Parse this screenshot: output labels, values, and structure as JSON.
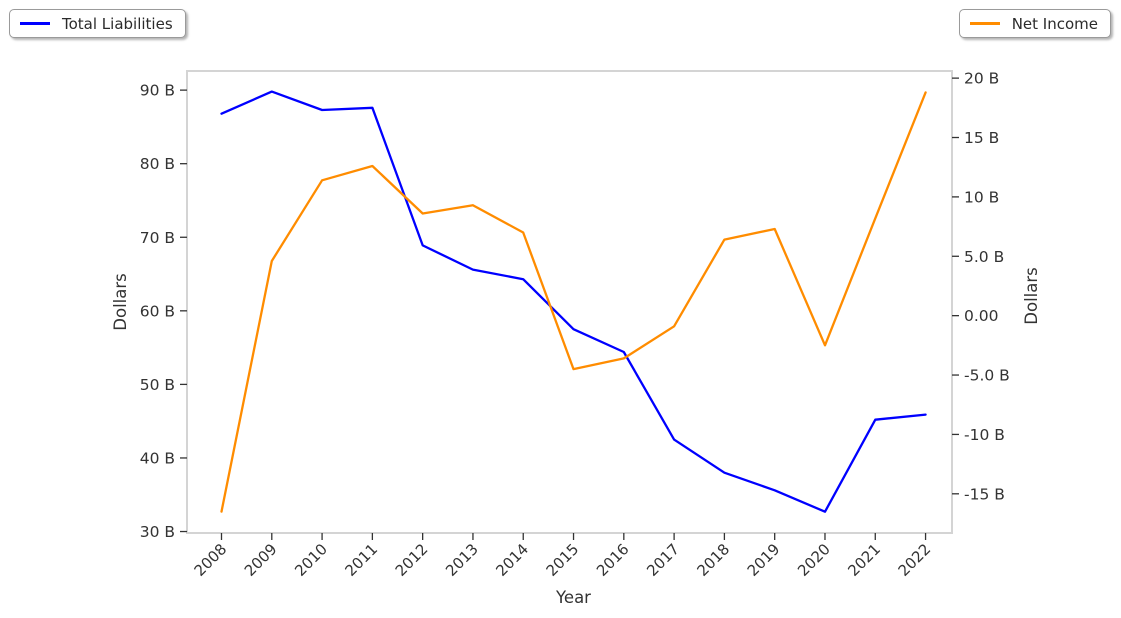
{
  "legends": {
    "left": {
      "label": "Total Liabilities",
      "color": "#0000ff"
    },
    "right": {
      "label": "Net Income",
      "color": "#ff8c00"
    }
  },
  "chart_data": {
    "type": "line",
    "title": "",
    "xlabel": "Year",
    "x_categories": [
      "2008",
      "2009",
      "2010",
      "2011",
      "2012",
      "2013",
      "2014",
      "2015",
      "2016",
      "2017",
      "2018",
      "2019",
      "2020",
      "2021",
      "2022"
    ],
    "series": [
      {
        "name": "Total Liabilities",
        "axis": "left",
        "color": "#0000ff",
        "unit": "billions of dollars",
        "values": [
          86.8,
          89.8,
          87.3,
          87.6,
          68.9,
          65.6,
          64.3,
          57.5,
          54.4,
          42.5,
          38.0,
          35.6,
          32.7,
          45.2,
          45.9
        ]
      },
      {
        "name": "Net Income",
        "axis": "right",
        "color": "#ff8c00",
        "unit": "billions of dollars",
        "values": [
          -16.5,
          4.6,
          11.4,
          12.6,
          8.6,
          9.3,
          7.0,
          -4.5,
          -3.6,
          -0.9,
          6.4,
          7.3,
          -2.5,
          8.2,
          18.8
        ]
      }
    ],
    "left_axis": {
      "title": "Dollars",
      "range_at_plot_edges": [
        29.8,
        92.6
      ],
      "ticks": [
        {
          "v": 90,
          "label": "90 B"
        },
        {
          "v": 80,
          "label": "80 B"
        },
        {
          "v": 70,
          "label": "70 B"
        },
        {
          "v": 60,
          "label": "60 B"
        },
        {
          "v": 50,
          "label": "50 B"
        },
        {
          "v": 40,
          "label": "40 B"
        },
        {
          "v": 30,
          "label": "30 B"
        }
      ]
    },
    "right_axis": {
      "title": "Dollars",
      "range_at_plot_edges": [
        -18.3,
        20.6
      ],
      "ticks": [
        {
          "v": 20,
          "label": "20 B"
        },
        {
          "v": 15,
          "label": "15 B"
        },
        {
          "v": 10,
          "label": "10 B"
        },
        {
          "v": 5,
          "label": "5.0 B"
        },
        {
          "v": 0,
          "label": "0.00"
        },
        {
          "v": -5,
          "label": "-5.0 B"
        },
        {
          "v": -10,
          "label": "-10 B"
        },
        {
          "v": -15,
          "label": "-15 B"
        }
      ]
    },
    "grid": false,
    "legend_position": "top-left and top-right floating boxes",
    "colors": {
      "text": "#333333",
      "plot_border": "#d4d4d4",
      "background": "#ffffff"
    }
  }
}
